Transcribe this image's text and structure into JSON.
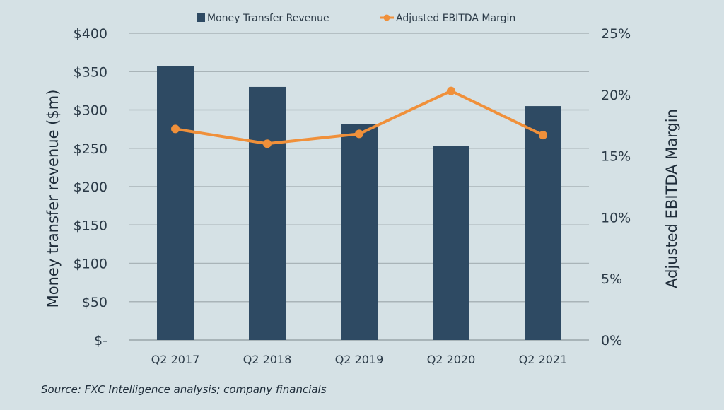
{
  "chart_data": {
    "type": "bar+line",
    "categories": [
      "Q2 2017",
      "Q2 2018",
      "Q2 2019",
      "Q2 2020",
      "Q2 2021"
    ],
    "series": [
      {
        "name": "Money Transfer Revenue",
        "type": "bar",
        "axis": "left",
        "color": "#2e4a63",
        "values": [
          357,
          330,
          282,
          253,
          305
        ]
      },
      {
        "name": "Adjusted EBITDA Margin",
        "type": "line",
        "axis": "right",
        "color": "#f0903a",
        "values": [
          17.2,
          16.0,
          16.8,
          20.3,
          16.7
        ]
      }
    ],
    "ylabel": "Money transfer revenue ($m)",
    "ylabel_right": "Adjusted EBITDA Margin",
    "ylim": [
      0,
      400
    ],
    "ylim_right": [
      0,
      25
    ],
    "yticks": [
      "$-",
      "$50",
      "$100",
      "$150",
      "$200",
      "$250",
      "$300",
      "$350",
      "$400"
    ],
    "yticks_right": [
      "0%",
      "5%",
      "10%",
      "15%",
      "20%",
      "25%"
    ],
    "grid": true,
    "legend_placement": "top-center",
    "source": "Source: FXC Intelligence analysis; company financials"
  }
}
